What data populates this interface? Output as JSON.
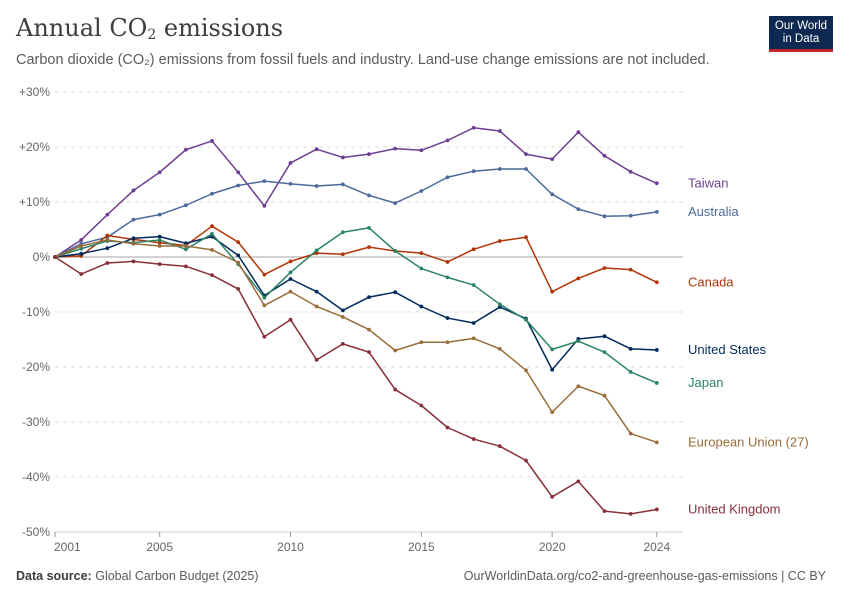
{
  "header": {
    "title_main": "Annual CO",
    "title_sub": "2",
    "title_end": " emissions",
    "subtitle": "Carbon dioxide (CO₂) emissions from fossil fuels and industry. Land-use change emissions are not included.",
    "logo_line1": "Our World",
    "logo_line2": "in Data"
  },
  "footer": {
    "source_label": "Data source:",
    "source_value": "Global Carbon Budget (2025)",
    "right": "OurWorldinData.org/co2-and-greenhouse-gas-emissions | CC BY"
  },
  "chart_data": {
    "type": "line",
    "title": "Annual CO₂ emissions",
    "xlabel": "",
    "ylabel": "",
    "ylim": [
      -50,
      30
    ],
    "xlim": [
      2000,
      2024
    ],
    "y_ticks": [
      30,
      20,
      10,
      0,
      -10,
      -20,
      -30,
      -40,
      -50
    ],
    "y_tick_labels": [
      "+30%",
      "+20%",
      "+10%",
      "0%",
      "-10%",
      "-20%",
      "-30%",
      "-40%",
      "-50%"
    ],
    "x_ticks": [
      2000,
      2004,
      2009,
      2014,
      2019,
      2023
    ],
    "x_tick_labels": [
      "2001",
      "2005",
      "2010",
      "2015",
      "2020",
      "2024"
    ],
    "x": [
      2000,
      2001,
      2002,
      2003,
      2004,
      2005,
      2006,
      2007,
      2008,
      2009,
      2010,
      2011,
      2012,
      2013,
      2014,
      2015,
      2016,
      2017,
      2018,
      2019,
      2020,
      2021,
      2022,
      2023
    ],
    "grid": true,
    "series": [
      {
        "name": "Taiwan",
        "color": "#6d3e91",
        "values": [
          0,
          3.1,
          7.7,
          12.1,
          15.4,
          19.5,
          21.1,
          15.4,
          9.3,
          17.1,
          19.6,
          18.1,
          18.7,
          19.7,
          19.4,
          21.2,
          23.5,
          22.9,
          18.7,
          17.8,
          22.7,
          18.4,
          15.5,
          13.4
        ]
      },
      {
        "name": "Australia",
        "color": "#4c6a9c",
        "values": [
          0,
          2.4,
          3.6,
          6.8,
          7.7,
          9.4,
          11.5,
          13.0,
          13.8,
          13.3,
          12.9,
          13.2,
          11.2,
          9.8,
          12.0,
          14.5,
          15.6,
          16.0,
          16.0,
          11.4,
          8.7,
          7.4,
          7.5,
          8.2
        ]
      },
      {
        "name": "Canada",
        "color": "#b13507",
        "values": [
          0,
          0.2,
          3.9,
          3.2,
          2.6,
          2.1,
          5.6,
          2.7,
          -3.2,
          -0.8,
          0.7,
          0.5,
          1.8,
          1.1,
          0.7,
          -0.9,
          1.4,
          2.9,
          3.6,
          -6.3,
          -3.9,
          -2.0,
          -2.3,
          -4.6
        ]
      },
      {
        "name": "United States",
        "color": "#00295b",
        "values": [
          0,
          0.6,
          1.6,
          3.4,
          3.7,
          2.5,
          3.7,
          0.3,
          -7.0,
          -4.0,
          -6.3,
          -9.7,
          -7.3,
          -6.4,
          -9.0,
          -11.1,
          -12.0,
          -9.1,
          -11.2,
          -20.5,
          -14.9,
          -14.4,
          -16.7,
          -16.9
        ]
      },
      {
        "name": "Japan",
        "color": "#2c8465",
        "values": [
          0,
          1.5,
          2.9,
          2.6,
          3.1,
          1.4,
          4.2,
          -1.3,
          -7.4,
          -2.8,
          1.2,
          4.5,
          5.3,
          1.1,
          -2.1,
          -3.7,
          -5.1,
          -8.6,
          -11.4,
          -16.8,
          -15.3,
          -17.3,
          -20.9,
          -22.9
        ]
      },
      {
        "name": "European Union (27)",
        "color": "#996d39",
        "values": [
          0,
          2.0,
          3.1,
          2.4,
          2.0,
          2.0,
          1.3,
          -1.0,
          -8.8,
          -6.3,
          -9.0,
          -10.9,
          -13.2,
          -17.0,
          -15.5,
          -15.5,
          -14.8,
          -16.7,
          -20.6,
          -28.2,
          -23.5,
          -25.2,
          -32.1,
          -33.7
        ]
      },
      {
        "name": "United Kingdom",
        "color": "#883039",
        "values": [
          0,
          -3.1,
          -1.1,
          -0.8,
          -1.3,
          -1.7,
          -3.3,
          -5.8,
          -14.5,
          -11.4,
          -18.7,
          -15.8,
          -17.3,
          -24.1,
          -27.0,
          -31.0,
          -33.1,
          -34.4,
          -37.0,
          -43.6,
          -40.8,
          -46.2,
          -46.7,
          -45.9
        ]
      }
    ]
  }
}
